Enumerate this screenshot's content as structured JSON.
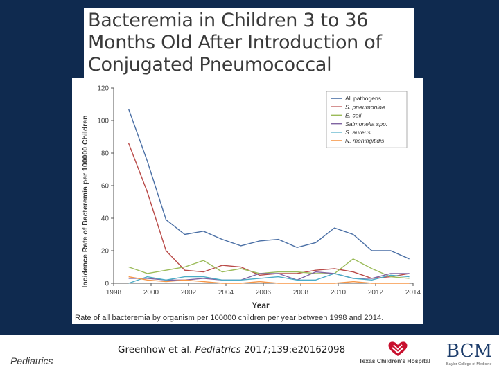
{
  "slide": {
    "title": "Bacteremia in Children 3 to 36 Months Old After Introduction of Conjugated Pneumococcal Vaccines",
    "caption": "Rate of all bacteremia by organism per 100000 children per year between 1998 and 2014.",
    "footer_left": "Pediatrics",
    "citation_authors": "Greenhow et al.",
    "citation_journal": "Pediatrics",
    "citation_ref": "2017;139:e20162098",
    "logo_tch_text": "Texas Children's Hospital",
    "logo_tch_icon": "heart-hands-logo-icon",
    "logo_bcm_text": "BCM",
    "logo_bcm_sub": "Baylor College of Medicine",
    "colors": {
      "background": "#0f2a4f",
      "title_box": "#ffffff",
      "tch_red": "#c8102e",
      "bcm_blue": "#1d3d6b"
    }
  },
  "chart_data": {
    "type": "line",
    "xlabel": "Year",
    "ylabel": "Incidence Rate of Bacteremia per 100000 Children",
    "xlim": [
      1998,
      2014
    ],
    "ylim": [
      0,
      120
    ],
    "xticks": [
      1998,
      2000,
      2002,
      2004,
      2006,
      2008,
      2010,
      2012,
      2014
    ],
    "yticks": [
      0,
      20,
      40,
      60,
      80,
      100,
      120
    ],
    "grid": false,
    "legend_position": "top-right",
    "x": [
      1998.8,
      1999.8,
      2000.8,
      2001.8,
      2002.8,
      2003.8,
      2004.8,
      2005.8,
      2006.8,
      2007.8,
      2008.8,
      2009.8,
      2010.8,
      2011.8,
      2012.8,
      2013.8
    ],
    "series": [
      {
        "name": "All pathogens",
        "color": "#4a6fa5",
        "values": [
          107,
          75,
          39,
          30,
          32,
          27,
          23,
          26,
          27,
          22,
          25,
          34,
          30,
          20,
          20,
          15
        ]
      },
      {
        "name": "S. pneumoniae",
        "color": "#b94a48",
        "values": [
          86,
          56,
          20,
          8,
          7,
          11,
          10,
          5,
          6,
          6,
          8,
          9,
          7,
          3,
          4,
          6
        ]
      },
      {
        "name": "E. coli",
        "color": "#9bbb59",
        "values": [
          10,
          6,
          8,
          10,
          14,
          7,
          9,
          6,
          7,
          7,
          6,
          6,
          15,
          9,
          4,
          3
        ]
      },
      {
        "name": "Salmonella spp.",
        "color": "#8064a2",
        "values": [
          3,
          3,
          2,
          2,
          3,
          2,
          2,
          6,
          6,
          2,
          7,
          6,
          3,
          3,
          6,
          6
        ]
      },
      {
        "name": "S. aureus",
        "color": "#4bacc6",
        "values": [
          0,
          4,
          2,
          4,
          4,
          2,
          2,
          3,
          4,
          2,
          2,
          6,
          3,
          2,
          5,
          4
        ]
      },
      {
        "name": "N. meningitidis",
        "color": "#f79646",
        "values": [
          4,
          2,
          1,
          2,
          1,
          0,
          0,
          1,
          0,
          0,
          0,
          0,
          1,
          0,
          0,
          0
        ]
      }
    ]
  }
}
